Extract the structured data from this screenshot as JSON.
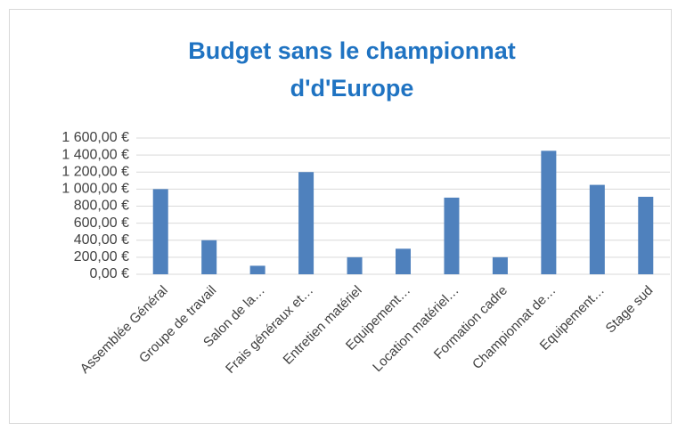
{
  "chart_data": {
    "type": "bar",
    "title": "Budget sans le championnat d'd'Europe",
    "categories": [
      "Assemblée Général",
      "Groupe de travail",
      "Salon de la…",
      "Frais généraux et…",
      "Entretien matériel",
      "Equipement…",
      "Location matériel…",
      "Formation  cadre",
      "Championnat de…",
      "Equipement…",
      "Stage sud"
    ],
    "values": [
      1000,
      400,
      100,
      1200,
      200,
      300,
      900,
      200,
      1450,
      1050,
      910
    ],
    "color": "#4f81bd",
    "ylim": [
      0,
      1600
    ],
    "yticks": [
      {
        "value": 0,
        "label": "0,00 €"
      },
      {
        "value": 200,
        "label": "200,00 €"
      },
      {
        "value": 400,
        "label": "400,00 €"
      },
      {
        "value": 600,
        "label": "600,00 €"
      },
      {
        "value": 800,
        "label": "800,00 €"
      },
      {
        "value": 1000,
        "label": "1 000,00 €"
      },
      {
        "value": 1200,
        "label": "1 200,00 €"
      },
      {
        "value": 1400,
        "label": "1 400,00 €"
      },
      {
        "value": 1600,
        "label": "1 600,00 €"
      }
    ],
    "grid": true
  }
}
